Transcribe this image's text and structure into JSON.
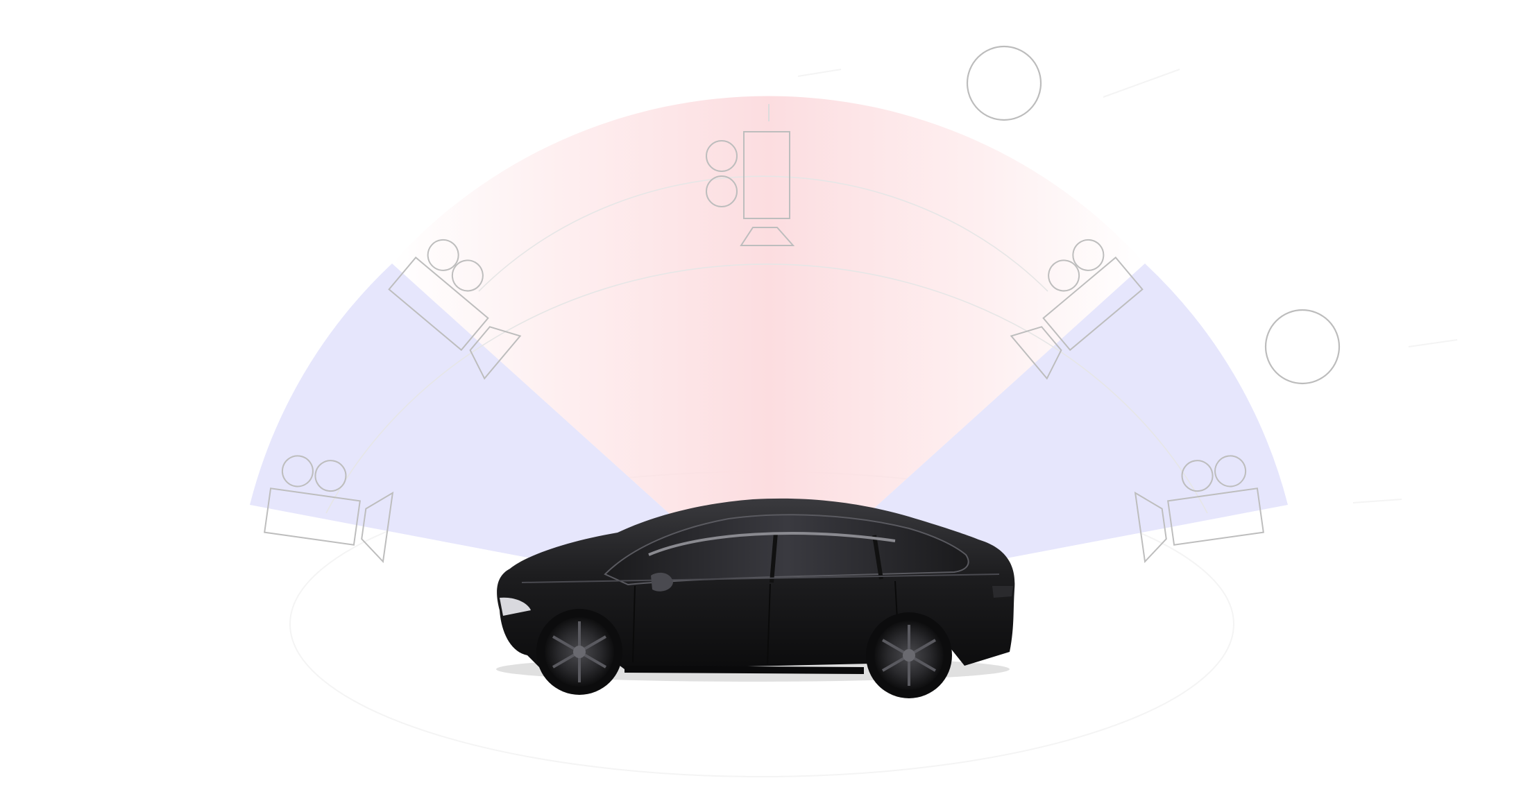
{
  "diagram": {
    "colors": {
      "background": "#ffffff",
      "front_zone": "#fde2e4",
      "side_zone": "#e6e6fc",
      "outline": "#bdbdbd",
      "car_body": "#1d1d1f",
      "car_glass": "#2c2c30",
      "wheel": "#2a2a2d"
    },
    "zones": [
      {
        "id": "front",
        "color": "#fde2e4"
      },
      {
        "id": "front-left",
        "color": "#e6e6fc"
      },
      {
        "id": "front-right",
        "color": "#e6e6fc"
      }
    ],
    "cameras": [
      {
        "id": "front-center",
        "icon": "movie-camera-icon"
      },
      {
        "id": "front-left",
        "icon": "movie-camera-icon"
      },
      {
        "id": "front-right",
        "icon": "movie-camera-icon"
      },
      {
        "id": "side-left",
        "icon": "movie-camera-icon"
      },
      {
        "id": "side-right",
        "icon": "movie-camera-icon"
      }
    ],
    "vehicle": {
      "icon": "sedan-car-icon",
      "color": "#1d1d1f"
    }
  }
}
